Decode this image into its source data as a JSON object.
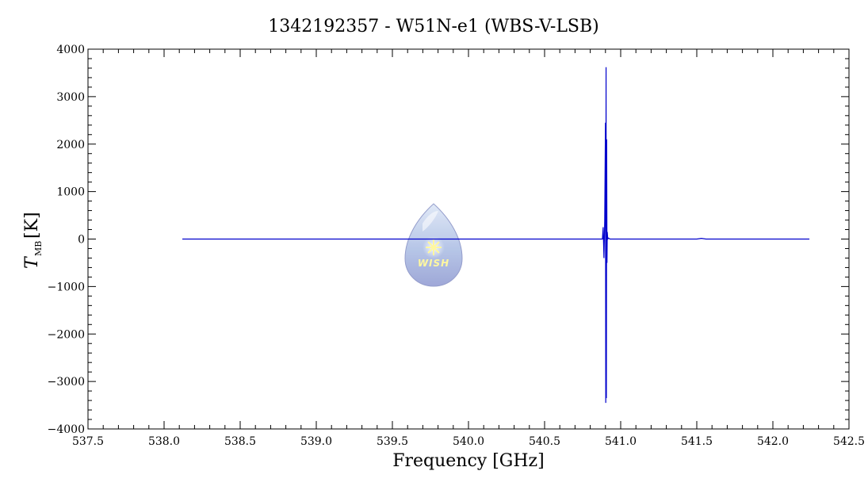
{
  "chart_data": {
    "type": "line",
    "title": "1342192357 - W51N-e1 (WBS-V-LSB)",
    "xlabel": "Frequency [GHz]",
    "ylabel_main": "T",
    "ylabel_sub": "MB",
    "ylabel_unit": "[K]",
    "xlim": [
      537.5,
      542.5
    ],
    "ylim": [
      -4000,
      4000
    ],
    "xticks": [
      537.5,
      538.0,
      538.5,
      539.0,
      539.5,
      540.0,
      540.5,
      541.0,
      541.5,
      542.0,
      542.5
    ],
    "xtick_labels": [
      "537.5",
      "538.0",
      "538.5",
      "539.0",
      "539.5",
      "540.0",
      "540.5",
      "541.0",
      "541.5",
      "542.0",
      "542.5"
    ],
    "yticks": [
      -4000,
      -3000,
      -2000,
      -1000,
      0,
      1000,
      2000,
      3000,
      4000
    ],
    "ytick_labels": [
      "−4000",
      "−3000",
      "−2000",
      "−1000",
      "0",
      "1000",
      "2000",
      "3000",
      "4000"
    ],
    "grid": false,
    "series": [
      {
        "color": "#0000cc",
        "x": [
          538.12,
          540.88,
          540.885,
          540.89,
          540.895,
          540.9,
          540.902,
          540.904,
          540.906,
          540.908,
          540.91,
          540.912,
          540.915,
          540.92,
          540.93,
          541.5,
          541.53,
          541.56,
          542.24
        ],
        "y": [
          0,
          0,
          250,
          -400,
          380,
          2450,
          -3450,
          3620,
          -3350,
          2100,
          -500,
          150,
          0,
          20,
          0,
          0,
          15,
          0,
          0
        ]
      }
    ]
  },
  "logo": {
    "text": "WISH",
    "colors": {
      "drop_top": "#c8d8f0",
      "drop_bottom": "#9fa8d8",
      "star": "#fff7a0"
    }
  }
}
